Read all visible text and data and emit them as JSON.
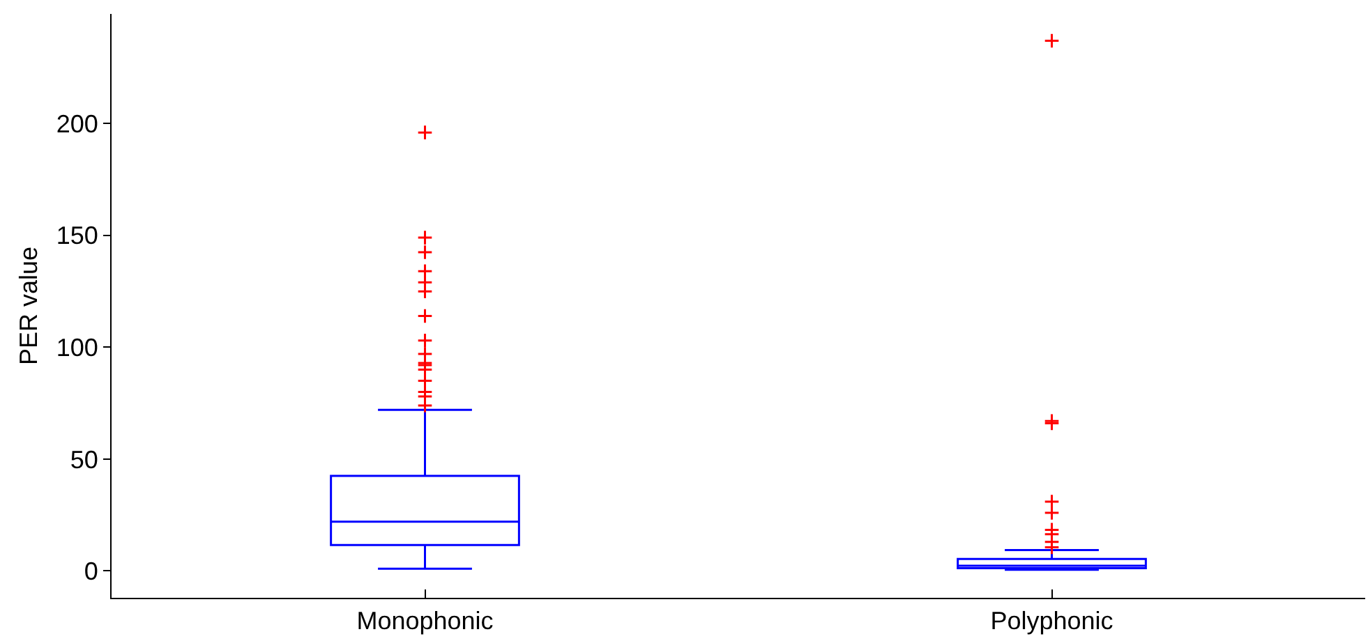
{
  "chart_data": {
    "type": "box",
    "ylabel": "PER value",
    "categories": [
      "Monophonic",
      "Polyphonic"
    ],
    "ylim": [
      -12,
      249
    ],
    "yticks": [
      0,
      50,
      100,
      150,
      200
    ],
    "grid": false,
    "series": [
      {
        "color": "#0000ff",
        "boxes": [
          {
            "low": 1,
            "q1": 11.6,
            "median": 22,
            "q3": 42.5,
            "high": 72,
            "outliers": [
              196,
              149,
              142.5,
              134,
              129,
              125,
              114,
              103,
              97,
              93,
              92,
              90,
              85,
              80,
              78,
              74
            ]
          },
          {
            "low": 0.5,
            "q1": 1.2,
            "median": 2.3,
            "q3": 5.4,
            "high": 9.3,
            "outliers": [
              237,
              67,
              66,
              31,
              26,
              18.4,
              16.4,
              13,
              10.6
            ]
          }
        ]
      }
    ]
  }
}
